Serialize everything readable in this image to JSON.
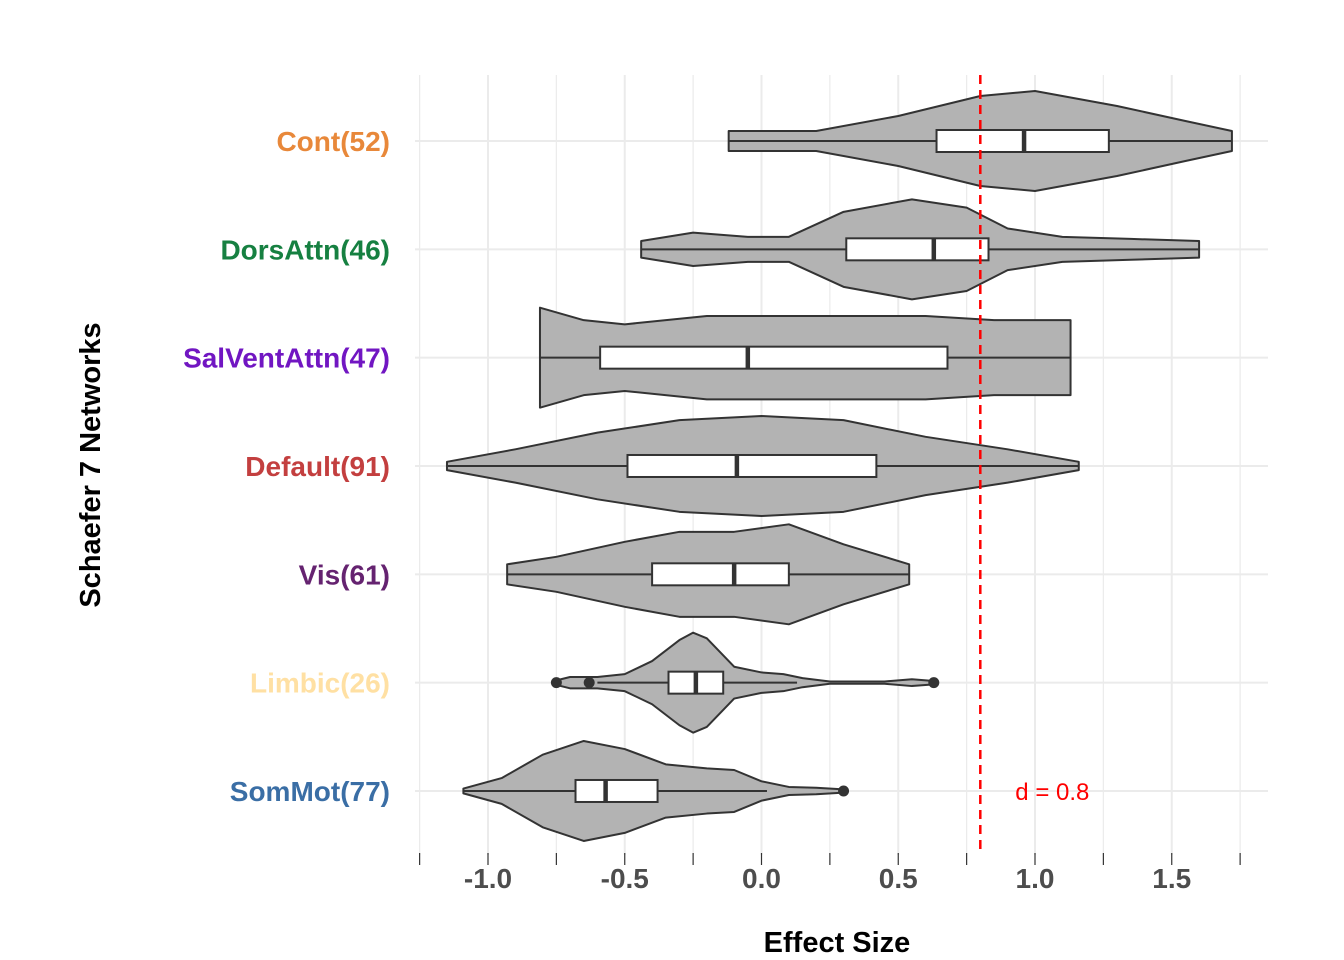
{
  "chart_data": {
    "type": "violin",
    "xlabel": "Effect Size",
    "ylabel": "Schaefer 7 Networks",
    "xlim": [
      -1.25,
      1.85
    ],
    "x_ticks": [
      -1.0,
      -0.5,
      0.0,
      0.5,
      1.0,
      1.5
    ],
    "x_tick_labels": [
      "-1.0",
      "-0.5",
      "0.0",
      "0.5",
      "1.0",
      "1.5"
    ],
    "grid": true,
    "fill_color": "#b3b3b3",
    "reference_line": {
      "x": 0.8,
      "color": "#ff0000",
      "style": "dashed",
      "label": "d = 0.8"
    },
    "categories": [
      {
        "label": "Cont(52)",
        "color": "#e8883a",
        "min": -0.12,
        "max": 1.72,
        "q1": 0.64,
        "median": 0.96,
        "q3": 1.27,
        "whisker_low": -0.12,
        "whisker_high": 1.72,
        "outliers": [],
        "density": [
          [
            -0.12,
            0.02
          ],
          [
            0.2,
            0.02
          ],
          [
            0.5,
            0.05
          ],
          [
            0.8,
            0.09
          ],
          [
            1.0,
            0.1
          ],
          [
            1.3,
            0.07
          ],
          [
            1.55,
            0.04
          ],
          [
            1.72,
            0.02
          ]
        ]
      },
      {
        "label": "DorsAttn(46)",
        "color": "#168041",
        "min": -0.44,
        "max": 1.6,
        "q1": 0.31,
        "median": 0.63,
        "q3": 0.83,
        "whisker_low": -0.44,
        "whisker_high": 1.6,
        "outliers": [],
        "density": [
          [
            -0.44,
            0.02
          ],
          [
            -0.25,
            0.04
          ],
          [
            -0.05,
            0.03
          ],
          [
            0.1,
            0.03
          ],
          [
            0.3,
            0.09
          ],
          [
            0.55,
            0.12
          ],
          [
            0.75,
            0.1
          ],
          [
            0.9,
            0.05
          ],
          [
            1.1,
            0.03
          ],
          [
            1.35,
            0.025
          ],
          [
            1.6,
            0.02
          ]
        ]
      },
      {
        "label": "SalVentAttn(47)",
        "color": "#7116c2",
        "min": -0.81,
        "max": 1.13,
        "q1": -0.59,
        "median": -0.05,
        "q3": 0.68,
        "whisker_low": -0.81,
        "whisker_high": 1.13,
        "outliers": [],
        "density": [
          [
            -0.81,
            0.06
          ],
          [
            -0.65,
            0.045
          ],
          [
            -0.5,
            0.04
          ],
          [
            -0.2,
            0.05
          ],
          [
            0.2,
            0.05
          ],
          [
            0.6,
            0.05
          ],
          [
            0.85,
            0.045
          ],
          [
            1.13,
            0.045
          ]
        ]
      },
      {
        "label": "Default(91)",
        "color": "#c33f3f",
        "min": -1.15,
        "max": 1.16,
        "q1": -0.49,
        "median": -0.09,
        "q3": 0.42,
        "whisker_low": -1.15,
        "whisker_high": 1.16,
        "outliers": [],
        "density": [
          [
            -1.15,
            0.01
          ],
          [
            -0.9,
            0.04
          ],
          [
            -0.6,
            0.08
          ],
          [
            -0.3,
            0.11
          ],
          [
            0.0,
            0.12
          ],
          [
            0.3,
            0.11
          ],
          [
            0.6,
            0.07
          ],
          [
            0.9,
            0.04
          ],
          [
            1.16,
            0.01
          ]
        ]
      },
      {
        "label": "Vis(61)",
        "color": "#652370",
        "min": -0.93,
        "max": 0.54,
        "q1": -0.4,
        "median": -0.1,
        "q3": 0.1,
        "whisker_low": -0.93,
        "whisker_high": 0.54,
        "outliers": [],
        "density": [
          [
            -0.93,
            0.04
          ],
          [
            -0.75,
            0.07
          ],
          [
            -0.5,
            0.13
          ],
          [
            -0.3,
            0.17
          ],
          [
            -0.1,
            0.17
          ],
          [
            0.1,
            0.2
          ],
          [
            0.3,
            0.12
          ],
          [
            0.54,
            0.04
          ]
        ]
      },
      {
        "label": "Limbic(26)",
        "color": "#ffe0a3",
        "min": -0.75,
        "max": 0.63,
        "q1": -0.34,
        "median": -0.24,
        "q3": -0.14,
        "whisker_low": -0.6,
        "whisker_high": 0.13,
        "outliers": [
          -0.75,
          -0.63,
          0.63
        ],
        "density": [
          [
            -0.75,
            0.04
          ],
          [
            -0.7,
            0.1
          ],
          [
            -0.6,
            0.1
          ],
          [
            -0.5,
            0.15
          ],
          [
            -0.4,
            0.38
          ],
          [
            -0.3,
            0.75
          ],
          [
            -0.25,
            0.88
          ],
          [
            -0.2,
            0.78
          ],
          [
            -0.1,
            0.28
          ],
          [
            0.0,
            0.18
          ],
          [
            0.08,
            0.15
          ],
          [
            0.15,
            0.08
          ],
          [
            0.25,
            0.02
          ],
          [
            0.45,
            0.02
          ],
          [
            0.55,
            0.06
          ],
          [
            0.63,
            0.03
          ]
        ]
      },
      {
        "label": "SomMot(77)",
        "color": "#3a6ea5",
        "min": -1.09,
        "max": 0.3,
        "q1": -0.68,
        "median": -0.57,
        "q3": -0.38,
        "whisker_low": -1.09,
        "whisker_high": 0.02,
        "outliers": [
          0.3
        ],
        "density": [
          [
            -1.09,
            0.03
          ],
          [
            -0.95,
            0.16
          ],
          [
            -0.8,
            0.45
          ],
          [
            -0.65,
            0.62
          ],
          [
            -0.5,
            0.52
          ],
          [
            -0.35,
            0.33
          ],
          [
            -0.2,
            0.28
          ],
          [
            -0.1,
            0.26
          ],
          [
            0.0,
            0.12
          ],
          [
            0.1,
            0.05
          ],
          [
            0.2,
            0.04
          ],
          [
            0.3,
            0.02
          ]
        ]
      }
    ]
  }
}
